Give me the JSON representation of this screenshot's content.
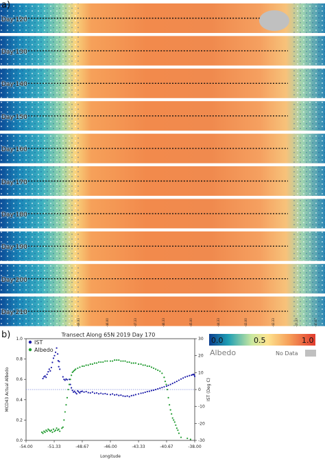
{
  "figure": {
    "panel_a_letter": "a)",
    "panel_b_letter": "b)",
    "day_labels": [
      "Day 120",
      "Day 130",
      "Day 140",
      "Day 150",
      "Day 160",
      "Day 170",
      "Day 180",
      "Day 190",
      "Day 200",
      "Day 210"
    ],
    "lon_ticks": [
      "-49.33",
      "-46.00",
      "-47.33",
      "-46.33",
      "-45.00",
      "-44.33",
      "-43.00",
      "-42.33",
      "-41.33",
      "-40.67"
    ],
    "colorbar": {
      "tick_0": "0.0",
      "tick_mid": "0.5",
      "tick_1": "1.0",
      "label": "Albedo",
      "nodata_label": "No Data",
      "colors": [
        "#0b3f8f",
        "#1f9fb4",
        "#c9e8a0",
        "#fde38f",
        "#f6a05a",
        "#e23b2e"
      ],
      "nodata_color": "#c0c0c0"
    }
  },
  "chart_data": {
    "type": "scatter",
    "title": "Transect Along 65N 2019 Day 170",
    "xlabel": "Longitude",
    "ylabel_left": "MCD43 Actual Albedo",
    "ylabel_right": "IST (Deg C)",
    "xlim": [
      -54.0,
      -38.0
    ],
    "ylim_left": [
      0.0,
      1.0
    ],
    "ylim_right": [
      -30,
      30
    ],
    "x_ticks": [
      "-54.00",
      "-51.33",
      "-48.67",
      "-46.00",
      "-43.33",
      "-40.67",
      "-38.00"
    ],
    "y_ticks_left": [
      "0.0",
      "0.2",
      "0.4",
      "0.6",
      "0.8",
      "1.0"
    ],
    "y_ticks_right": [
      "-30",
      "-20",
      "-10",
      "0",
      "10",
      "20",
      "30"
    ],
    "reference_line": {
      "axis": "right",
      "value": 0
    },
    "legend_position": "top-left",
    "series": [
      {
        "name": "IST",
        "axis": "right",
        "color": "#1a1aa8",
        "points": [
          [
            -52.4,
            6.5
          ],
          [
            -52.3,
            7.5
          ],
          [
            -52.2,
            8.0
          ],
          [
            -52.1,
            7.2
          ],
          [
            -52.0,
            9.0
          ],
          [
            -51.9,
            10.5
          ],
          [
            -51.8,
            12.0
          ],
          [
            -51.7,
            11.0
          ],
          [
            -51.6,
            13.0
          ],
          [
            -51.5,
            16.0
          ],
          [
            -51.4,
            18.5
          ],
          [
            -51.3,
            20.0
          ],
          [
            -51.2,
            22.0
          ],
          [
            -51.1,
            24.5
          ],
          [
            -51.0,
            21.0
          ],
          [
            -50.95,
            17.0
          ],
          [
            -50.9,
            13.5
          ],
          [
            -50.85,
            16.5
          ],
          [
            -50.8,
            12.0
          ],
          [
            -50.5,
            7.5
          ],
          [
            -50.4,
            6.0
          ],
          [
            -50.3,
            5.5
          ],
          [
            -50.2,
            6.2
          ],
          [
            -50.1,
            5.8
          ],
          [
            -49.9,
            6.0
          ],
          [
            -49.8,
            3.0
          ],
          [
            -49.7,
            1.0
          ],
          [
            -49.6,
            -0.5
          ],
          [
            -49.5,
            -1.5
          ],
          [
            -49.4,
            -1.0
          ],
          [
            -49.3,
            -1.8
          ],
          [
            -49.2,
            -2.5
          ],
          [
            -49.1,
            -0.8
          ],
          [
            -49.0,
            -1.4
          ],
          [
            -48.9,
            -2.0
          ],
          [
            -48.8,
            -1.2
          ],
          [
            -48.67,
            -1.0
          ],
          [
            -48.5,
            -1.5
          ],
          [
            -48.3,
            -1.2
          ],
          [
            -48.1,
            -1.8
          ],
          [
            -47.9,
            -2.0
          ],
          [
            -47.7,
            -1.5
          ],
          [
            -47.5,
            -2.2
          ],
          [
            -47.3,
            -2.0
          ],
          [
            -47.1,
            -2.5
          ],
          [
            -46.9,
            -2.2
          ],
          [
            -46.7,
            -2.6
          ],
          [
            -46.5,
            -2.4
          ],
          [
            -46.3,
            -2.8
          ],
          [
            -46.0,
            -3.0
          ],
          [
            -45.8,
            -2.6
          ],
          [
            -45.6,
            -3.2
          ],
          [
            -45.4,
            -3.0
          ],
          [
            -45.2,
            -3.5
          ],
          [
            -45.0,
            -3.3
          ],
          [
            -44.8,
            -3.8
          ],
          [
            -44.6,
            -4.0
          ],
          [
            -44.4,
            -3.8
          ],
          [
            -44.2,
            -4.2
          ],
          [
            -44.0,
            -3.6
          ],
          [
            -43.8,
            -3.4
          ],
          [
            -43.6,
            -3.0
          ],
          [
            -43.33,
            -2.6
          ],
          [
            -43.1,
            -2.2
          ],
          [
            -42.9,
            -2.0
          ],
          [
            -42.7,
            -1.6
          ],
          [
            -42.5,
            -1.2
          ],
          [
            -42.3,
            -1.0
          ],
          [
            -42.1,
            -0.6
          ],
          [
            -41.9,
            -0.4
          ],
          [
            -41.7,
            0.0
          ],
          [
            -41.5,
            0.4
          ],
          [
            -41.3,
            0.8
          ],
          [
            -41.1,
            1.2
          ],
          [
            -40.9,
            1.6
          ],
          [
            -40.67,
            2.0
          ],
          [
            -40.5,
            2.5
          ],
          [
            -40.3,
            3.0
          ],
          [
            -40.1,
            3.6
          ],
          [
            -39.9,
            4.2
          ],
          [
            -39.7,
            4.8
          ],
          [
            -39.5,
            5.5
          ],
          [
            -39.3,
            6.2
          ],
          [
            -39.1,
            6.8
          ],
          [
            -38.9,
            7.4
          ],
          [
            -38.7,
            7.8
          ],
          [
            -38.5,
            8.2
          ],
          [
            -38.3,
            8.5
          ],
          [
            -38.2,
            8.8
          ],
          [
            -38.1,
            9.0
          ],
          [
            -38.05,
            8.6
          ],
          [
            -38.0,
            7.8
          ]
        ]
      },
      {
        "name": "Albedo",
        "axis": "left",
        "color": "#1f9a2e",
        "points": [
          [
            -52.5,
            0.08
          ],
          [
            -52.4,
            0.07
          ],
          [
            -52.3,
            0.09
          ],
          [
            -52.2,
            0.08
          ],
          [
            -52.1,
            0.1
          ],
          [
            -52.0,
            0.09
          ],
          [
            -51.9,
            0.11
          ],
          [
            -51.8,
            0.1
          ],
          [
            -51.7,
            0.09
          ],
          [
            -51.6,
            0.1
          ],
          [
            -51.5,
            0.08
          ],
          [
            -51.4,
            0.11
          ],
          [
            -51.3,
            0.09
          ],
          [
            -51.2,
            0.1
          ],
          [
            -51.1,
            0.12
          ],
          [
            -51.0,
            0.1
          ],
          [
            -50.9,
            0.11
          ],
          [
            -50.8,
            0.09
          ],
          [
            -50.6,
            0.12
          ],
          [
            -50.5,
            0.13
          ],
          [
            -50.4,
            0.2
          ],
          [
            -50.3,
            0.28
          ],
          [
            -50.2,
            0.35
          ],
          [
            -50.1,
            0.42
          ],
          [
            -50.0,
            0.5
          ],
          [
            -49.9,
            0.55
          ],
          [
            -49.8,
            0.6
          ],
          [
            -49.7,
            0.64
          ],
          [
            -49.6,
            0.67
          ],
          [
            -49.5,
            0.68
          ],
          [
            -49.4,
            0.69
          ],
          [
            -49.3,
            0.7
          ],
          [
            -49.1,
            0.71
          ],
          [
            -48.9,
            0.72
          ],
          [
            -48.67,
            0.73
          ],
          [
            -48.5,
            0.73
          ],
          [
            -48.3,
            0.74
          ],
          [
            -48.1,
            0.74
          ],
          [
            -47.9,
            0.75
          ],
          [
            -47.7,
            0.75
          ],
          [
            -47.5,
            0.76
          ],
          [
            -47.3,
            0.76
          ],
          [
            -47.1,
            0.77
          ],
          [
            -46.9,
            0.77
          ],
          [
            -46.7,
            0.77
          ],
          [
            -46.5,
            0.78
          ],
          [
            -46.3,
            0.78
          ],
          [
            -46.0,
            0.78
          ],
          [
            -45.8,
            0.78
          ],
          [
            -45.6,
            0.79
          ],
          [
            -45.4,
            0.79
          ],
          [
            -45.2,
            0.79
          ],
          [
            -45.0,
            0.78
          ],
          [
            -44.8,
            0.78
          ],
          [
            -44.6,
            0.78
          ],
          [
            -44.4,
            0.77
          ],
          [
            -44.2,
            0.77
          ],
          [
            -44.0,
            0.76
          ],
          [
            -43.8,
            0.76
          ],
          [
            -43.6,
            0.76
          ],
          [
            -43.33,
            0.75
          ],
          [
            -43.1,
            0.75
          ],
          [
            -42.9,
            0.74
          ],
          [
            -42.7,
            0.74
          ],
          [
            -42.5,
            0.73
          ],
          [
            -42.3,
            0.73
          ],
          [
            -42.1,
            0.72
          ],
          [
            -41.9,
            0.71
          ],
          [
            -41.7,
            0.7
          ],
          [
            -41.5,
            0.69
          ],
          [
            -41.3,
            0.68
          ],
          [
            -41.1,
            0.66
          ],
          [
            -40.9,
            0.62
          ],
          [
            -40.8,
            0.58
          ],
          [
            -40.7,
            0.55
          ],
          [
            -40.6,
            0.5
          ],
          [
            -40.5,
            0.42
          ],
          [
            -40.4,
            0.35
          ],
          [
            -40.3,
            0.3
          ],
          [
            -40.2,
            0.26
          ],
          [
            -40.1,
            0.22
          ],
          [
            -40.0,
            0.2
          ],
          [
            -39.9,
            0.18
          ],
          [
            -39.8,
            0.15
          ],
          [
            -39.7,
            0.12
          ],
          [
            -39.6,
            0.1
          ],
          [
            -39.5,
            0.07
          ],
          [
            -39.3,
            0.03
          ],
          [
            -38.7,
            0.02
          ],
          [
            -38.4,
            0.01
          ]
        ]
      }
    ]
  }
}
